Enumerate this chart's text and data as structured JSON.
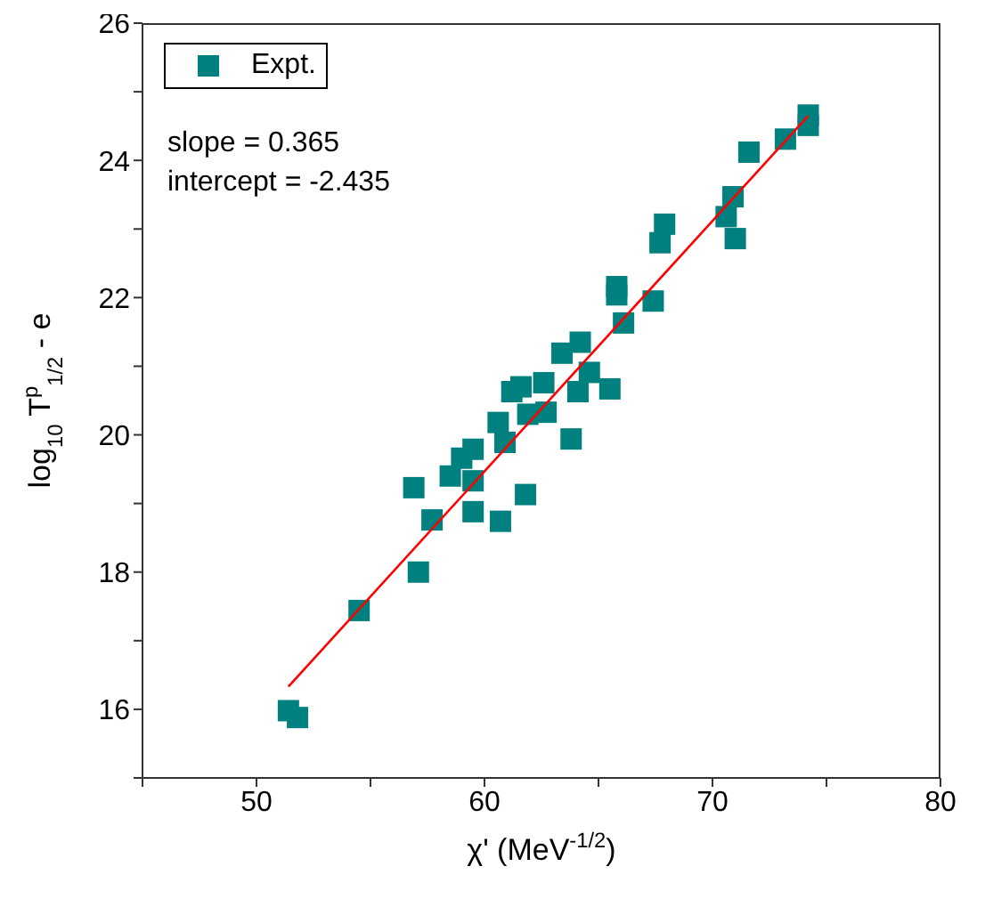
{
  "chart_data": {
    "type": "scatter",
    "xlabel": "χ' (MeV$^{-1/2}$)",
    "ylabel": "log$_{10}$ T$^{p}$$_{1/2}$ - e",
    "annotations": [
      "slope = 0.365",
      "intercept = -2.435"
    ],
    "xlim": [
      45,
      80
    ],
    "xticks": [
      {
        "value": 45,
        "label": null
      },
      50,
      {
        "value": 55,
        "label": null
      },
      60,
      {
        "value": 65,
        "label": null
      },
      70,
      {
        "value": 75,
        "label": null
      },
      80
    ],
    "ylim": [
      15,
      26
    ],
    "yticks": [
      {
        "value": 15,
        "label": null
      },
      16,
      {
        "value": 17,
        "label": null
      },
      18,
      {
        "value": 19,
        "label": null
      },
      20,
      {
        "value": 21,
        "label": null
      },
      22,
      {
        "value": 23,
        "label": null
      },
      24,
      {
        "value": 25,
        "label": null
      },
      26
    ],
    "grid": false,
    "legend": "top left",
    "marker": "square",
    "series": [
      {
        "name": "Expt.",
        "color": "#00807f",
        "x": [
          51.4,
          51.8,
          54.5,
          57.1,
          57.7,
          56.9,
          58.5,
          59.0,
          59.5,
          59.5,
          59.5,
          60.7,
          60.9,
          60.6,
          61.8,
          61.9,
          61.2,
          61.6,
          62.6,
          62.7,
          63.4,
          64.2,
          63.8,
          64.1,
          64.6,
          65.5,
          66.1,
          65.8,
          65.8,
          67.4,
          67.7,
          67.9,
          70.6,
          70.9,
          71.0,
          71.6,
          73.2,
          74.2,
          74.2
        ],
        "values": [
          15.98,
          15.88,
          17.44,
          18.0,
          18.76,
          19.23,
          19.4,
          19.66,
          19.79,
          19.33,
          18.88,
          18.74,
          19.89,
          20.18,
          19.13,
          20.3,
          20.63,
          20.7,
          20.76,
          20.33,
          21.19,
          21.35,
          19.94,
          20.63,
          20.91,
          20.67,
          21.63,
          22.16,
          22.04,
          21.95,
          22.8,
          23.07,
          23.18,
          23.47,
          22.86,
          24.12,
          24.31,
          24.66,
          24.51
        ]
      },
      {
        "type": "line",
        "color": "#ff0000",
        "marker": "none",
        "line_style": "solid",
        "x": [
          51.4,
          74.2
        ],
        "values": [
          16.33,
          24.65
        ]
      }
    ]
  }
}
